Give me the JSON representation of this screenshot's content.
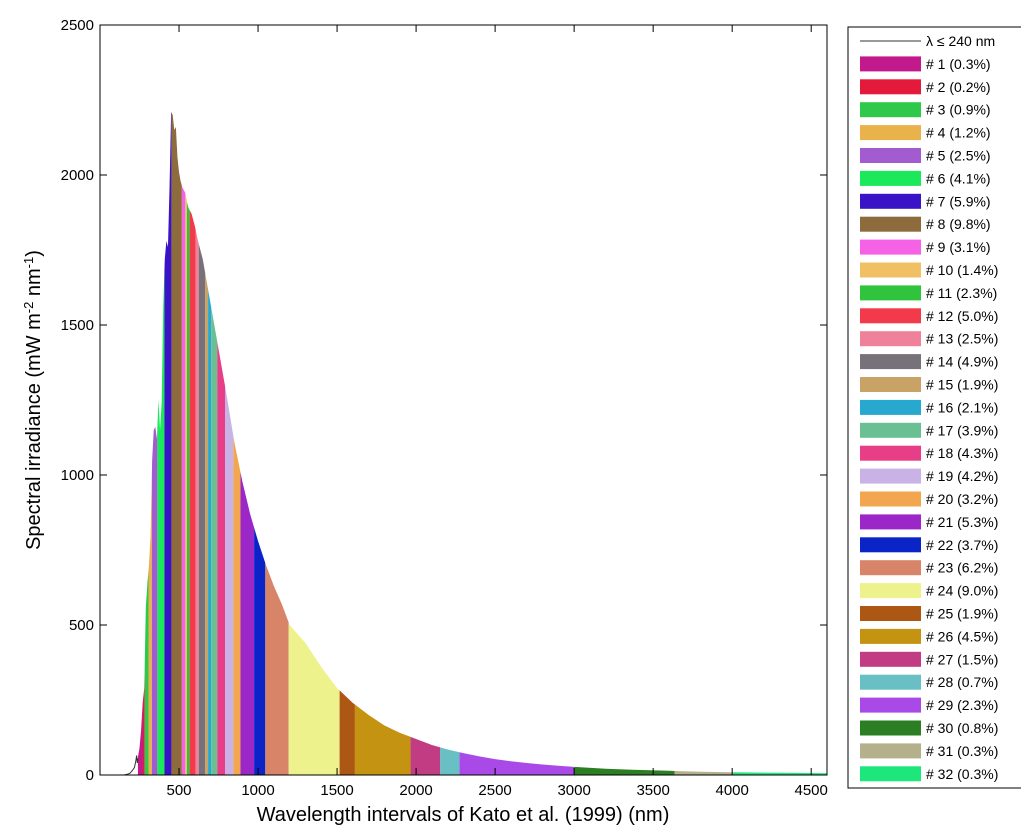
{
  "chart_data": {
    "type": "area",
    "xlabel": "Wavelength intervals of Kato et al. (1999) (nm)",
    "ylabel_main": "Spectral irradiance (mW m",
    "ylabel_exp1": "-2",
    "ylabel_mid": " nm",
    "ylabel_exp2": "-1",
    "ylabel_end": ")",
    "xlim": [
      0,
      4600
    ],
    "ylim": [
      0,
      2500
    ],
    "xticks": [
      500,
      1000,
      1500,
      2000,
      2500,
      3000,
      3500,
      4000,
      4500
    ],
    "yticks": [
      0,
      500,
      1000,
      1500,
      2000,
      2500
    ],
    "grid": false,
    "legend_placement": "right-outside",
    "uv_line": {
      "name": "λ ≤ 240 nm",
      "color": "#333333",
      "points": [
        [
          150,
          0
        ],
        [
          170,
          2
        ],
        [
          190,
          6
        ],
        [
          205,
          15
        ],
        [
          218,
          25
        ],
        [
          226,
          45
        ],
        [
          232,
          65
        ],
        [
          236,
          40
        ],
        [
          240,
          55
        ]
      ]
    },
    "spectrum": [
      [
        240,
        60
      ],
      [
        250,
        90
      ],
      [
        260,
        150
      ],
      [
        270,
        240
      ],
      [
        280,
        290
      ],
      [
        290,
        560
      ],
      [
        300,
        640
      ],
      [
        310,
        700
      ],
      [
        320,
        800
      ],
      [
        330,
        1050
      ],
      [
        340,
        1150
      ],
      [
        350,
        1160
      ],
      [
        360,
        1120
      ],
      [
        370,
        1250
      ],
      [
        380,
        1150
      ],
      [
        390,
        1240
      ],
      [
        400,
        1560
      ],
      [
        410,
        1720
      ],
      [
        420,
        1780
      ],
      [
        430,
        1760
      ],
      [
        440,
        1960
      ],
      [
        450,
        2210
      ],
      [
        460,
        2200
      ],
      [
        470,
        2150
      ],
      [
        480,
        2160
      ],
      [
        490,
        2060
      ],
      [
        500,
        2010
      ],
      [
        510,
        1980
      ],
      [
        520,
        1960
      ],
      [
        530,
        1950
      ],
      [
        540,
        1940
      ],
      [
        550,
        1910
      ],
      [
        560,
        1890
      ],
      [
        580,
        1870
      ],
      [
        600,
        1830
      ],
      [
        620,
        1780
      ],
      [
        650,
        1720
      ],
      [
        700,
        1570
      ],
      [
        750,
        1420
      ],
      [
        800,
        1270
      ],
      [
        850,
        1110
      ],
      [
        900,
        980
      ],
      [
        950,
        870
      ],
      [
        1000,
        780
      ],
      [
        1050,
        700
      ],
      [
        1100,
        630
      ],
      [
        1150,
        570
      ],
      [
        1200,
        500
      ],
      [
        1300,
        440
      ],
      [
        1400,
        360
      ],
      [
        1500,
        290
      ],
      [
        1600,
        240
      ],
      [
        1700,
        200
      ],
      [
        1800,
        165
      ],
      [
        1900,
        140
      ],
      [
        2000,
        120
      ],
      [
        2100,
        100
      ],
      [
        2200,
        85
      ],
      [
        2300,
        73
      ],
      [
        2400,
        62
      ],
      [
        2500,
        53
      ],
      [
        2600,
        46
      ],
      [
        2700,
        40
      ],
      [
        2800,
        35
      ],
      [
        2900,
        31
      ],
      [
        3000,
        27
      ],
      [
        3200,
        21
      ],
      [
        3400,
        17
      ],
      [
        3600,
        14
      ],
      [
        3800,
        11
      ],
      [
        4000,
        9
      ],
      [
        4200,
        8
      ],
      [
        4400,
        7
      ],
      [
        4600,
        6
      ]
    ],
    "bands": [
      {
        "label": "# 1 (0.3%)",
        "start": 240,
        "end": 272,
        "color": "#c21a8c"
      },
      {
        "label": "# 2 (0.2%)",
        "start": 272,
        "end": 283,
        "color": "#e31a3a"
      },
      {
        "label": "# 3 (0.9%)",
        "start": 283,
        "end": 307,
        "color": "#2ec84a"
      },
      {
        "label": "# 4 (1.2%)",
        "start": 307,
        "end": 328,
        "color": "#eab24a"
      },
      {
        "label": "# 5 (2.5%)",
        "start": 328,
        "end": 363,
        "color": "#a35bd0"
      },
      {
        "label": "# 6 (4.1%)",
        "start": 363,
        "end": 408,
        "color": "#1be85a"
      },
      {
        "label": "# 7 (5.9%)",
        "start": 408,
        "end": 452,
        "color": "#3a12c8"
      },
      {
        "label": "# 8 (9.8%)",
        "start": 452,
        "end": 518,
        "color": "#8e6b3c"
      },
      {
        "label": "# 9 (3.1%)",
        "start": 518,
        "end": 540,
        "color": "#f562e6"
      },
      {
        "label": "# 10 (1.4%)",
        "start": 540,
        "end": 550,
        "color": "#f2c064"
      },
      {
        "label": "# 11 (2.3%)",
        "start": 550,
        "end": 567,
        "color": "#2fc43c"
      },
      {
        "label": "# 12 (5.0%)",
        "start": 567,
        "end": 605,
        "color": "#f23a4a"
      },
      {
        "label": "# 13 (2.5%)",
        "start": 605,
        "end": 625,
        "color": "#f0819a"
      },
      {
        "label": "# 14 (4.9%)",
        "start": 625,
        "end": 666,
        "color": "#77717a"
      },
      {
        "label": "# 15 (1.9%)",
        "start": 666,
        "end": 684,
        "color": "#c9a265"
      },
      {
        "label": "# 16 (2.1%)",
        "start": 684,
        "end": 704,
        "color": "#26a8cf"
      },
      {
        "label": "# 17 (3.9%)",
        "start": 704,
        "end": 742,
        "color": "#6ac093"
      },
      {
        "label": "# 18 (4.3%)",
        "start": 742,
        "end": 791,
        "color": "#e83e87"
      },
      {
        "label": "# 19 (4.2%)",
        "start": 791,
        "end": 844,
        "color": "#c9b2e6"
      },
      {
        "label": "# 20 (3.2%)",
        "start": 844,
        "end": 889,
        "color": "#f3a650"
      },
      {
        "label": "# 21 (5.3%)",
        "start": 889,
        "end": 975,
        "color": "#9c27c9"
      },
      {
        "label": "# 22 (3.7%)",
        "start": 975,
        "end": 1046,
        "color": "#0a24c8"
      },
      {
        "label": "# 23 (6.2%)",
        "start": 1046,
        "end": 1194,
        "color": "#d78468"
      },
      {
        "label": "# 24 (9.0%)",
        "start": 1194,
        "end": 1516,
        "color": "#eef28c"
      },
      {
        "label": "# 25 (1.9%)",
        "start": 1516,
        "end": 1613,
        "color": "#ad5714"
      },
      {
        "label": "# 26 (4.5%)",
        "start": 1613,
        "end": 1965,
        "color": "#c49312"
      },
      {
        "label": "# 27 (1.5%)",
        "start": 1965,
        "end": 2153,
        "color": "#c13c82"
      },
      {
        "label": "# 28 (0.7%)",
        "start": 2153,
        "end": 2275,
        "color": "#69c0c4"
      },
      {
        "label": "# 29 (2.3%)",
        "start": 2275,
        "end": 3001,
        "color": "#a94ae8"
      },
      {
        "label": "# 30 (0.8%)",
        "start": 3001,
        "end": 3635,
        "color": "#2b7f22"
      },
      {
        "label": "# 31 (0.3%)",
        "start": 3635,
        "end": 4006,
        "color": "#b5b08c"
      },
      {
        "label": "# 32 (0.3%)",
        "start": 4006,
        "end": 4600,
        "color": "#1de67a"
      }
    ]
  }
}
